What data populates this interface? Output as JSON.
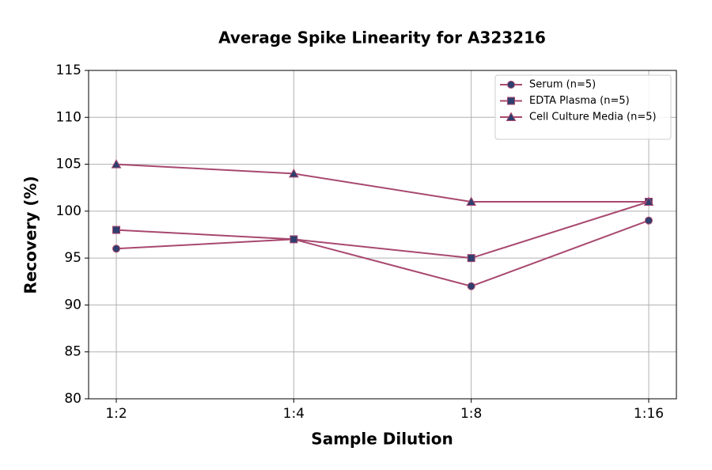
{
  "chart_data": {
    "type": "line",
    "title": "Average Spike Linearity for A323216",
    "x_label": "Sample Dilution",
    "y_label": "Recovery (%)",
    "categories": [
      "1:2",
      "1:4",
      "1:8",
      "1:16"
    ],
    "series": [
      {
        "name": "Serum (n=5)",
        "color": "#a8486f",
        "marker": "circle",
        "marker_color": "#2e3f6e",
        "values": [
          96,
          97,
          92,
          99
        ]
      },
      {
        "name": "EDTA Plasma (n=5)",
        "color": "#a8486f",
        "marker": "square",
        "marker_color": "#2e3f6e",
        "values": [
          98,
          97,
          95,
          101
        ]
      },
      {
        "name": "Cell Culture Media (n=5)",
        "color": "#a8486f",
        "marker": "triangle",
        "marker_color": "#2e3f6e",
        "values": [
          105,
          104,
          101,
          101
        ]
      }
    ],
    "ylim": [
      80,
      115
    ],
    "yticks": [
      80,
      85,
      90,
      95,
      100,
      105,
      110,
      115
    ],
    "grid": true,
    "legend": "upper right"
  }
}
